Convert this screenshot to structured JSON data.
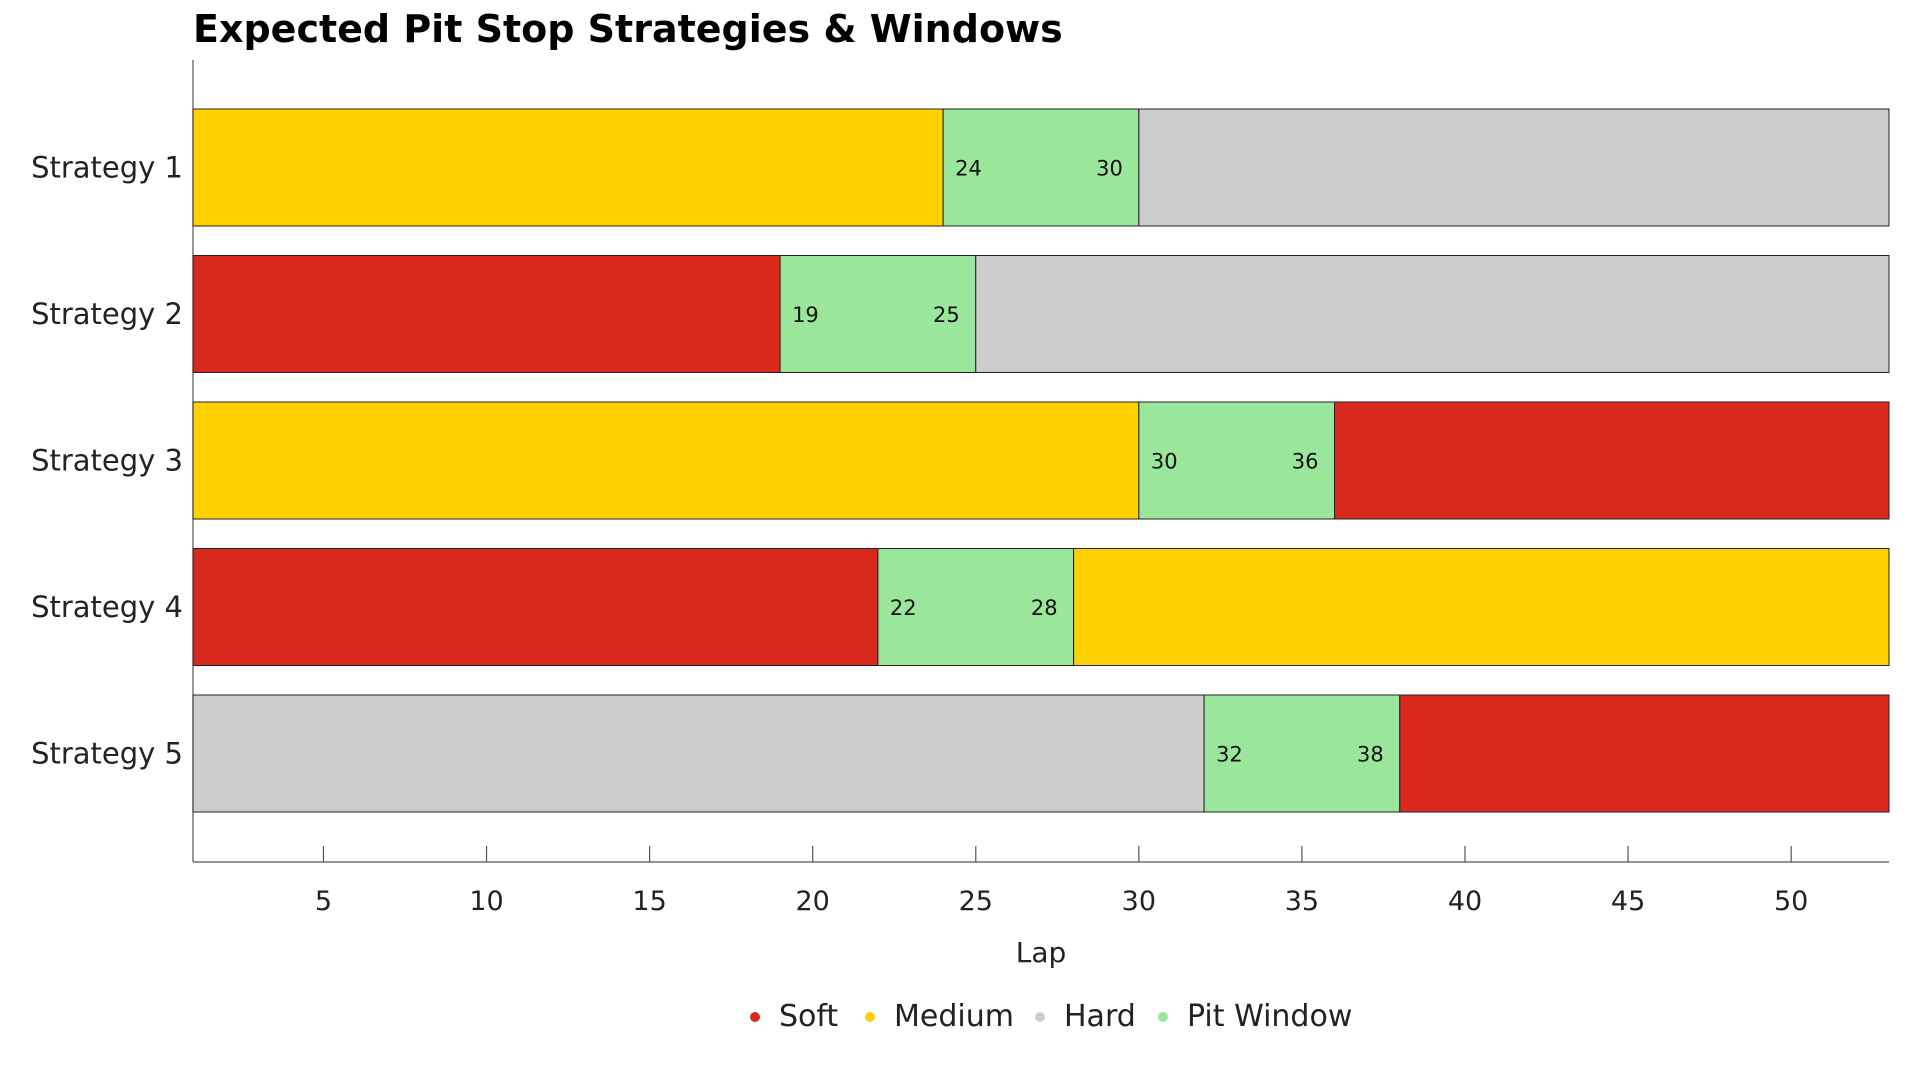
{
  "chart_data": {
    "type": "bar",
    "title": "Expected Pit Stop Strategies & Windows",
    "xlabel": "Lap",
    "xlim": [
      1,
      53
    ],
    "xticks": [
      5,
      10,
      15,
      20,
      25,
      30,
      35,
      40,
      45,
      50
    ],
    "colors": {
      "Soft": "#d9291c",
      "Medium": "#ffd100",
      "Hard": "#cccccc",
      "Pit Window": "#9ae69a"
    },
    "legend": [
      "Soft",
      "Medium",
      "Hard",
      "Pit Window"
    ],
    "legend_position": "bottom",
    "strategies": [
      {
        "name": "Strategy 1",
        "first": "Medium",
        "second": "Hard",
        "window": [
          24,
          30
        ]
      },
      {
        "name": "Strategy 2",
        "first": "Soft",
        "second": "Hard",
        "window": [
          19,
          25
        ]
      },
      {
        "name": "Strategy 3",
        "first": "Medium",
        "second": "Soft",
        "window": [
          30,
          36
        ]
      },
      {
        "name": "Strategy 4",
        "first": "Soft",
        "second": "Medium",
        "window": [
          22,
          28
        ]
      },
      {
        "name": "Strategy 5",
        "first": "Hard",
        "second": "Soft",
        "window": [
          32,
          38
        ]
      }
    ]
  }
}
